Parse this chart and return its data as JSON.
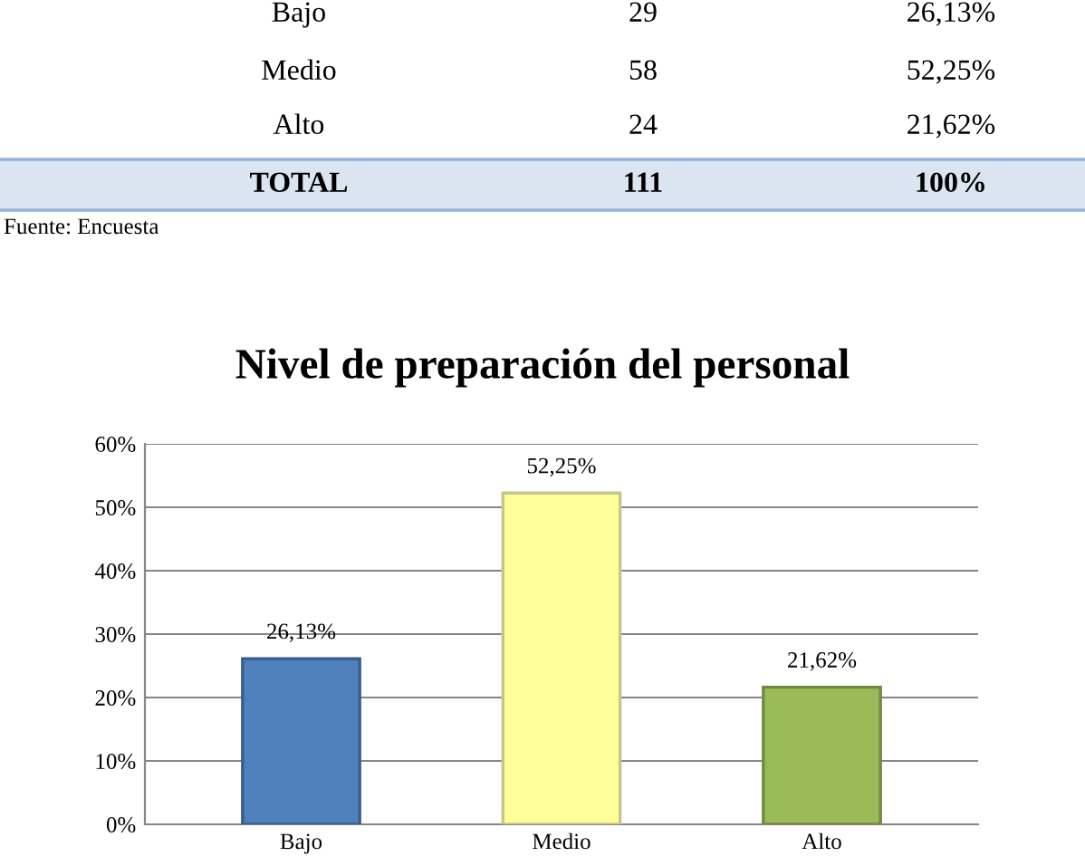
{
  "chart_data": [
    {
      "type": "other",
      "annotations": [
        "Bajo",
        "29",
        "26,13%",
        "Medio",
        "58",
        "52,25%",
        "Alto",
        "24",
        "21,62%",
        "TOTAL",
        "111",
        "100%",
        "Fuente: Encuesta"
      ]
    },
    {
      "type": "bar",
      "title": "Nivel de preparación del personal",
      "categories": [
        "Bajo",
        "Medio",
        "Alto"
      ],
      "values": [
        26.13,
        52.25,
        21.62
      ],
      "colors": [
        "#4f81bd",
        "#ffff99",
        "#9bbb59"
      ],
      "value_labels": [
        "26,13%",
        "52,25%",
        "21,62%"
      ],
      "ylim": [
        0,
        60
      ],
      "yticks": [
        {
          "value": 0,
          "label": "0%"
        },
        {
          "value": 10,
          "label": "10%"
        },
        {
          "value": 20,
          "label": "20%"
        },
        {
          "value": 30,
          "label": "30%"
        },
        {
          "value": 40,
          "label": "40%"
        },
        {
          "value": 50,
          "label": "50%"
        },
        {
          "value": 60,
          "label": "60%"
        }
      ],
      "grid": "y",
      "legend": false
    }
  ]
}
